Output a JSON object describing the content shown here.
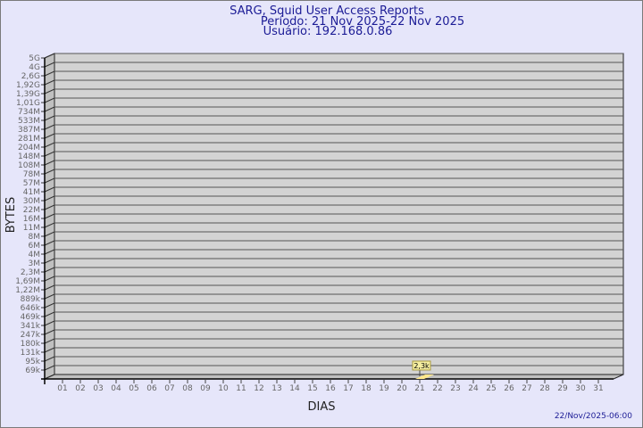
{
  "header": {
    "title": "SARG, Squid User Access Reports",
    "period": "Período: 21 Nov 2025-22 Nov 2025",
    "user": "Usuário: 192.168.0.86"
  },
  "footer": {
    "generated": "22/Nov/2025-06:00"
  },
  "colors": {
    "background": "#e6e6fa",
    "title": "#1c1c96",
    "wall": "#d3d3d3",
    "side_wall": "#c0c0c0",
    "bar": "#ffe88c"
  },
  "chart_data": {
    "type": "bar",
    "xlabel": "DIAS",
    "ylabel": "BYTES",
    "y_scale": "log",
    "grid": true,
    "y_ticks": [
      "5G",
      "4G",
      "2,6G",
      "1,92G",
      "1,39G",
      "1,01G",
      "734M",
      "533M",
      "387M",
      "281M",
      "204M",
      "148M",
      "108M",
      "78M",
      "57M",
      "41M",
      "30M",
      "22M",
      "16M",
      "11M",
      "8M",
      "6M",
      "4M",
      "3M",
      "2,3M",
      "1,69M",
      "1,22M",
      "889k",
      "646k",
      "469k",
      "341k",
      "247k",
      "180k",
      "131k",
      "95k",
      "69k"
    ],
    "categories": [
      "01",
      "02",
      "03",
      "04",
      "05",
      "06",
      "07",
      "08",
      "09",
      "10",
      "11",
      "12",
      "13",
      "14",
      "15",
      "16",
      "17",
      "18",
      "19",
      "20",
      "21",
      "22",
      "23",
      "24",
      "25",
      "26",
      "27",
      "28",
      "29",
      "30",
      "31"
    ],
    "values": [
      0,
      0,
      0,
      0,
      0,
      0,
      0,
      0,
      0,
      0,
      0,
      0,
      0,
      0,
      0,
      0,
      0,
      0,
      0,
      0,
      2300,
      0,
      0,
      0,
      0,
      0,
      0,
      0,
      0,
      0,
      0
    ],
    "data_labels": {
      "21": "2,3k"
    }
  }
}
